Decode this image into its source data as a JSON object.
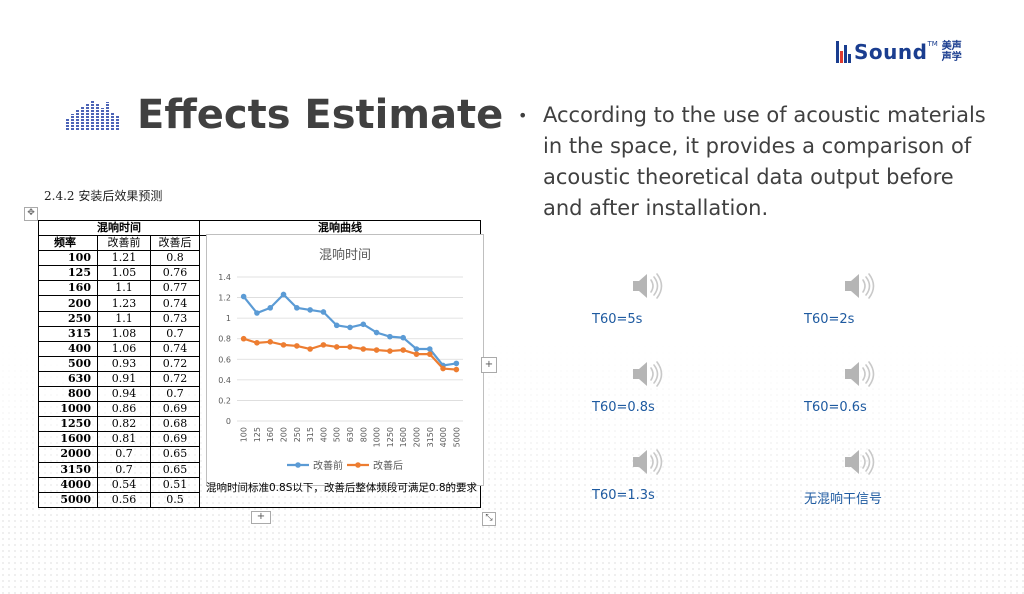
{
  "brand": {
    "name": "Sound",
    "tm": "TM",
    "cn_line1": "美声",
    "cn_line2": "声学",
    "color": "#1a3d8f"
  },
  "slide": {
    "title": "Effects Estimate",
    "description": "According to the use of acoustic materials in the space, it provides a comparison of acoustic theoretical data output before and after installation."
  },
  "doc": {
    "heading": "2.4.2   安装后效果预测",
    "table": {
      "group_header_left": "混响时间",
      "group_header_right": "混响曲线",
      "col_freq": "频率",
      "col_before": "改善前",
      "col_after": "改善后",
      "rows": [
        [
          "100",
          "1.21",
          "0.8"
        ],
        [
          "125",
          "1.05",
          "0.76"
        ],
        [
          "160",
          "1.1",
          "0.77"
        ],
        [
          "200",
          "1.23",
          "0.74"
        ],
        [
          "250",
          "1.1",
          "0.73"
        ],
        [
          "315",
          "1.08",
          "0.7"
        ],
        [
          "400",
          "1.06",
          "0.74"
        ],
        [
          "500",
          "0.93",
          "0.72"
        ],
        [
          "630",
          "0.91",
          "0.72"
        ],
        [
          "800",
          "0.94",
          "0.7"
        ],
        [
          "1000",
          "0.86",
          "0.69"
        ],
        [
          "1250",
          "0.82",
          "0.68"
        ],
        [
          "1600",
          "0.81",
          "0.69"
        ],
        [
          "2000",
          "0.7",
          "0.65"
        ],
        [
          "3150",
          "0.7",
          "0.65"
        ],
        [
          "4000",
          "0.54",
          "0.51"
        ],
        [
          "5000",
          "0.56",
          "0.5"
        ]
      ]
    },
    "note": "混响时间标准0.8S以下，改善后整体频段可满足0.8的要求"
  },
  "chart_data": {
    "type": "line",
    "title": "混响时间",
    "categories": [
      "100",
      "125",
      "160",
      "200",
      "250",
      "315",
      "400",
      "500",
      "630",
      "800",
      "1000",
      "1250",
      "1600",
      "2000",
      "3150",
      "4000",
      "5000"
    ],
    "series": [
      {
        "name": "改善前",
        "color": "#5b9bd5",
        "values": [
          1.21,
          1.05,
          1.1,
          1.23,
          1.1,
          1.08,
          1.06,
          0.93,
          0.91,
          0.94,
          0.86,
          0.82,
          0.81,
          0.7,
          0.7,
          0.54,
          0.56
        ]
      },
      {
        "name": "改善后",
        "color": "#ed7d31",
        "values": [
          0.8,
          0.76,
          0.77,
          0.74,
          0.73,
          0.7,
          0.74,
          0.72,
          0.72,
          0.7,
          0.69,
          0.68,
          0.69,
          0.65,
          0.65,
          0.51,
          0.5
        ]
      }
    ],
    "ylim": [
      0,
      1.4
    ],
    "yticks": [
      "0",
      "0.2",
      "0.4",
      "0.6",
      "0.8",
      "1",
      "1.2",
      "1.4"
    ],
    "grid": true,
    "legend": "bottom"
  },
  "sounds": [
    {
      "label": "T60=5s",
      "icon": "speaker-icon"
    },
    {
      "label": "T60=2s",
      "icon": "speaker-icon"
    },
    {
      "label": "T60=0.8s",
      "icon": "speaker-icon"
    },
    {
      "label": "T60=0.6s",
      "icon": "speaker-icon"
    },
    {
      "label": "T60=1.3s",
      "icon": "speaker-icon"
    },
    {
      "label": "无混响干信号",
      "icon": "speaker-icon"
    }
  ],
  "colors": {
    "title": "#404040",
    "bars": "#4b63b6",
    "link": "#1e5aa0"
  },
  "controls": {
    "plus": "+",
    "move": "✥",
    "resize": "⤡"
  }
}
